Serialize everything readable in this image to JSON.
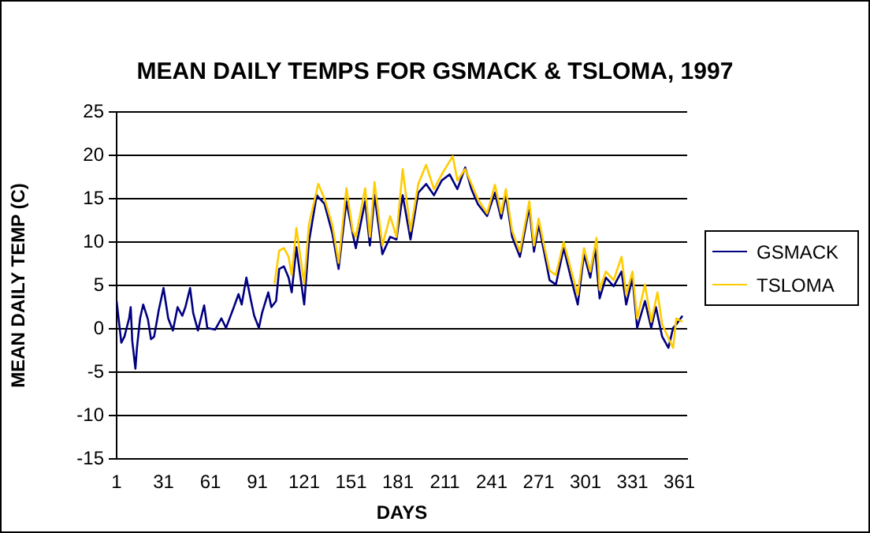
{
  "chart_data": {
    "type": "line",
    "title": "MEAN DAILY TEMPS FOR GSMACK & TSLOMA, 1997",
    "xlabel": "DAYS",
    "ylabel": "MEAN DAILY TEMP (C)",
    "xlim": [
      1,
      366
    ],
    "xticks": [
      1,
      31,
      61,
      91,
      121,
      151,
      181,
      211,
      241,
      271,
      301,
      331,
      361
    ],
    "ylim": [
      -15,
      25
    ],
    "yticks": [
      -15,
      -10,
      -5,
      0,
      5,
      10,
      15,
      20,
      25
    ],
    "grid": "y",
    "legend": "right",
    "marker": "none",
    "line_style": "solid",
    "series": [
      {
        "name": "GSMACK",
        "color": "#000080",
        "x": [
          1,
          4,
          6,
          9,
          10,
          11,
          13,
          14,
          16,
          18,
          21,
          23,
          25,
          28,
          31,
          34,
          37,
          40,
          43,
          45,
          48,
          50,
          53,
          57,
          59,
          64,
          68,
          71,
          76,
          79,
          81,
          84,
          87,
          89,
          92,
          94,
          98,
          100,
          103,
          105,
          108,
          111,
          113,
          116,
          121,
          124,
          129,
          134,
          139,
          143,
          148,
          152,
          154,
          160,
          163,
          166,
          171,
          176,
          180,
          184,
          189,
          194,
          199,
          204,
          209,
          214,
          219,
          224,
          228,
          232,
          238,
          243,
          247,
          250,
          254,
          259,
          265,
          268,
          271,
          274,
          278,
          282,
          287,
          292,
          296,
          300,
          304,
          307,
          310,
          314,
          319,
          324,
          327,
          331,
          334,
          339,
          343,
          346,
          350,
          354,
          357,
          359,
          363
        ],
        "values": [
          3.2,
          -1.6,
          -0.9,
          1.2,
          2.5,
          -1.4,
          -4.6,
          -2.2,
          1.2,
          2.8,
          1.1,
          -1.2,
          -0.9,
          2.2,
          4.7,
          1.2,
          -0.2,
          2.5,
          1.5,
          2.5,
          4.7,
          1.8,
          -0.2,
          2.7,
          0.1,
          -0.1,
          1.2,
          0.1,
          2.5,
          4,
          2.8,
          5.9,
          3.2,
          1.5,
          0.1,
          1.8,
          4.2,
          2.5,
          3.2,
          6.9,
          7.2,
          5.9,
          4.2,
          9.4,
          2.8,
          10,
          15.4,
          14.4,
          11,
          6.9,
          14.7,
          11,
          9.3,
          14.7,
          9.6,
          15.4,
          8.6,
          10.6,
          10.3,
          15.4,
          10.3,
          15.7,
          16.7,
          15.4,
          17.1,
          17.8,
          16.1,
          18.6,
          16.1,
          14.4,
          13,
          15.7,
          12.7,
          15.4,
          10.6,
          8.3,
          14,
          8.9,
          12,
          9.3,
          5.6,
          5.1,
          9.3,
          5.6,
          2.8,
          8.6,
          5.9,
          9.3,
          3.5,
          5.9,
          4.9,
          6.6,
          2.8,
          5.9,
          0.1,
          3.2,
          0.1,
          2.5,
          -0.9,
          -2.2,
          0.1,
          0.5,
          1.5
        ]
      },
      {
        "name": "TSLOMA",
        "color": "#ffcc00",
        "x": [
          102,
          105,
          108,
          111,
          113,
          116,
          121,
          124,
          130,
          134,
          139,
          143,
          148,
          152,
          154,
          160,
          163,
          166,
          171,
          176,
          180,
          184,
          189,
          194,
          199,
          204,
          209,
          216,
          219,
          224,
          228,
          232,
          238,
          243,
          247,
          250,
          254,
          259,
          265,
          268,
          271,
          274,
          278,
          282,
          287,
          292,
          296,
          300,
          304,
          308,
          310,
          314,
          319,
          324,
          327,
          331,
          334,
          339,
          343,
          347,
          350,
          357,
          359,
          363
        ],
        "values": [
          5.2,
          9,
          9.3,
          8.3,
          6.2,
          11.6,
          5.2,
          12,
          16.7,
          15,
          12,
          7.6,
          16.2,
          11.3,
          10.6,
          16.2,
          10.6,
          16.9,
          9.6,
          13,
          10.6,
          18.4,
          11.3,
          16.7,
          18.9,
          16.1,
          17.8,
          19.9,
          17.1,
          18.4,
          16.7,
          15,
          13.3,
          16.6,
          13.3,
          16.1,
          11.3,
          8.9,
          14.7,
          9.6,
          12.7,
          10,
          6.7,
          6.2,
          10,
          6.6,
          3.9,
          9.3,
          6.6,
          10.5,
          4.5,
          6.6,
          5.6,
          8.3,
          3.9,
          6.6,
          1.2,
          5.1,
          0.8,
          4.2,
          0.5,
          -2.2,
          1.2,
          0.8
        ]
      }
    ]
  }
}
